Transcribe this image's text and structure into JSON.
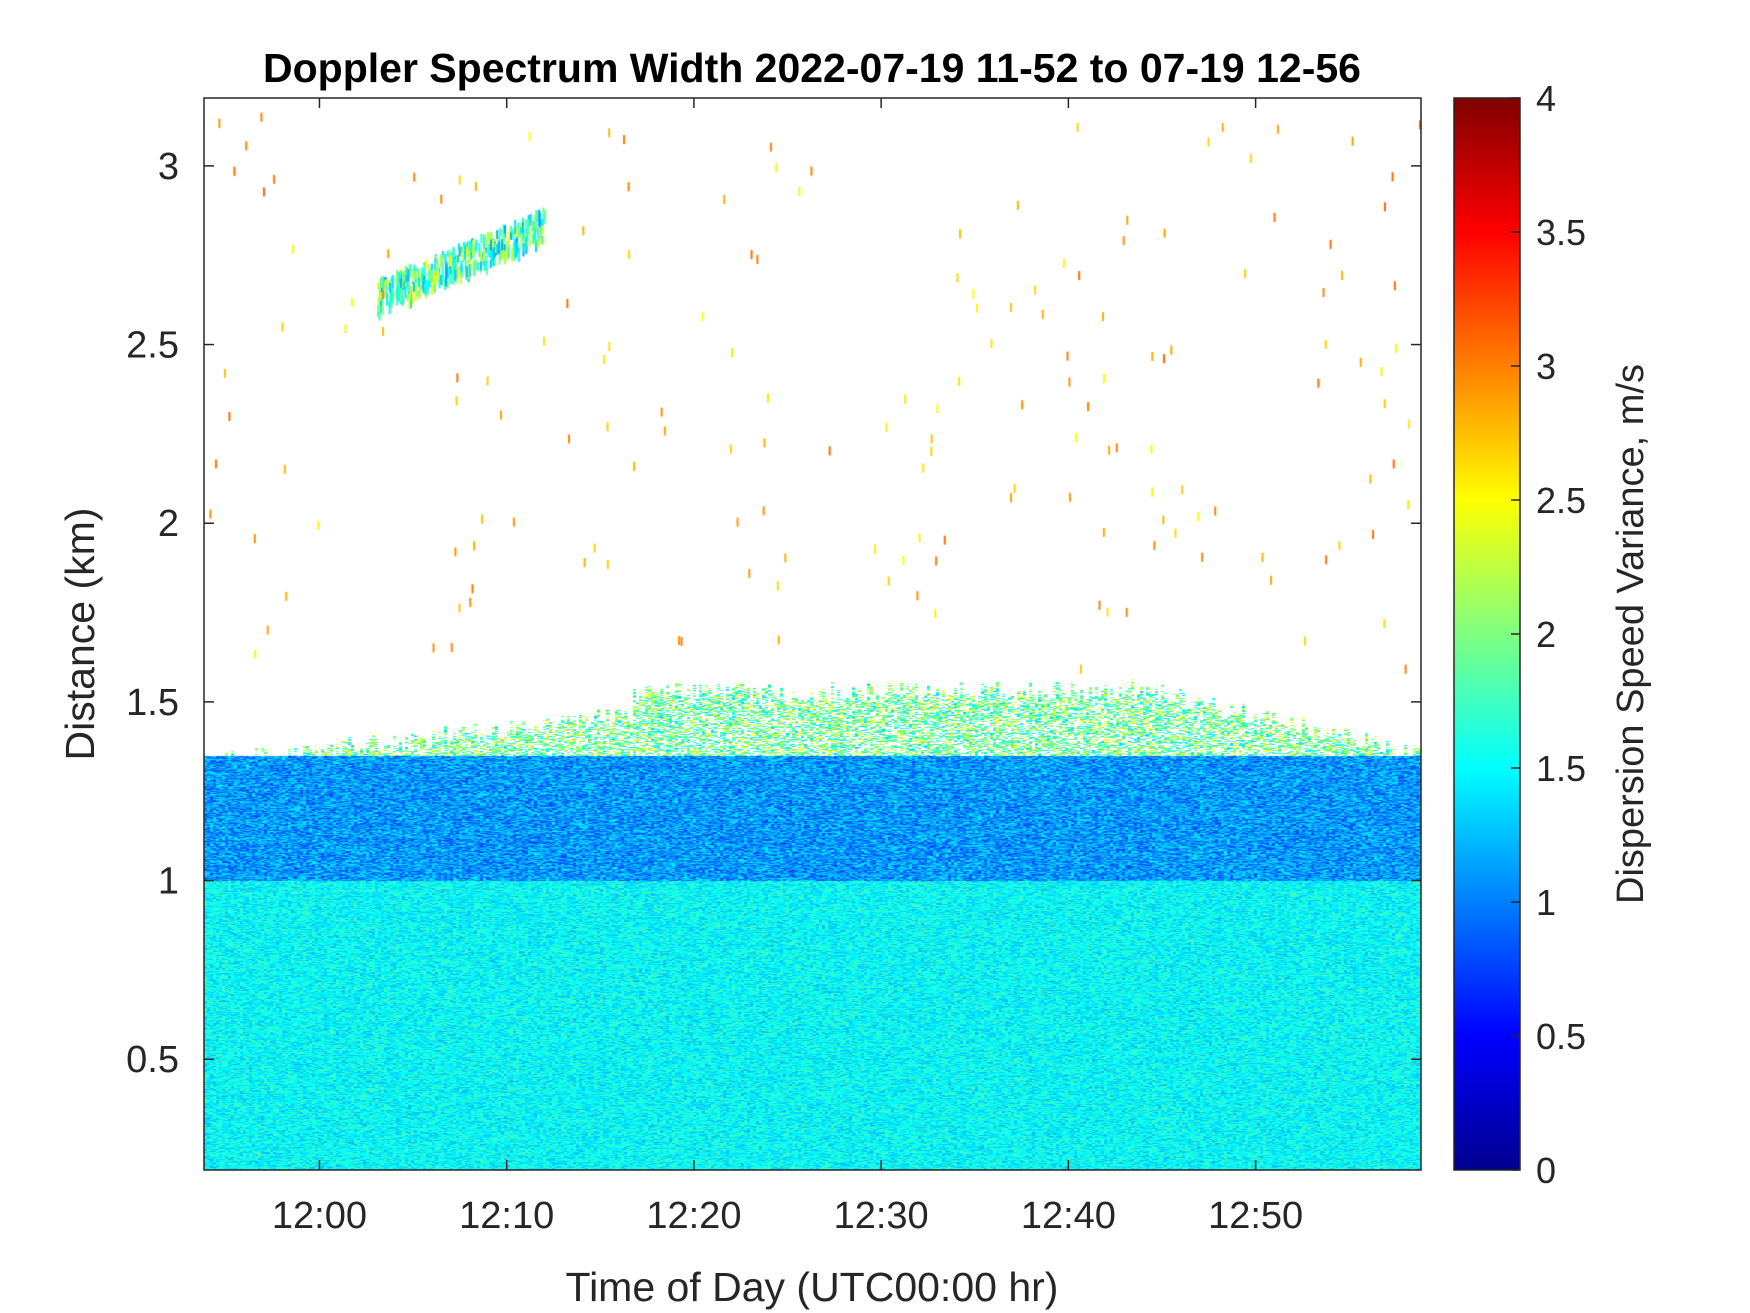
{
  "chart_data": {
    "type": "heatmap",
    "title": "Doppler Spectrum Width 2022-07-19 11-52 to 07-19 12-56",
    "xlabel": "Time of Day (UTC00:00 hr)",
    "ylabel": "Distance (km)",
    "colorbar_label": "Dispersion Speed Variance, m/s",
    "colormap": "jet",
    "xlim": [
      "11:53:50",
      "12:58:50"
    ],
    "ylim": [
      0.19,
      3.19
    ],
    "clim": [
      0,
      4
    ],
    "x_ticks": [
      "12:00",
      "12:10",
      "12:20",
      "12:30",
      "12:40",
      "12:50"
    ],
    "y_ticks": [
      "0.5",
      "1",
      "1.5",
      "2",
      "2.5",
      "3"
    ],
    "colorbar_ticks": [
      "0",
      "0.5",
      "1",
      "1.5",
      "2",
      "2.5",
      "3",
      "3.5",
      "4"
    ],
    "grid": false,
    "description_of_values": {
      "lower_layer": {
        "range_km": [
          0.19,
          1.0
        ],
        "typical_value": 1.5
      },
      "upper_layer": {
        "range_km": [
          1.0,
          1.35
        ],
        "typical_value": 1.1
      },
      "mixing_top_km": {
        "start": 1.33,
        "mid": 1.55,
        "end": 1.35
      },
      "cloud_patch": {
        "time": [
          "12:03",
          "12:12"
        ],
        "range_km": [
          2.6,
          2.85
        ],
        "typical_value": 1.8
      },
      "sparse_points_above": {
        "range_km": [
          1.6,
          3.15
        ],
        "typical_value": 2.8
      }
    }
  }
}
